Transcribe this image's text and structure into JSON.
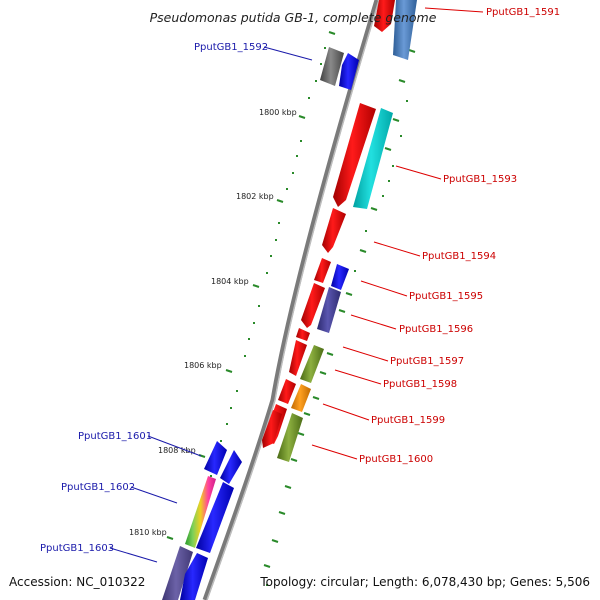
{
  "title": "Pseudomonas putida GB-1, complete genome",
  "accession": "Accession: NC_010322",
  "topology": "Topology: circular; Length: 6,078,430 bp; Genes: 5,506",
  "kbp_labels": [
    "1800 kbp",
    "1802 kbp",
    "1804 kbp",
    "1806 kbp",
    "1808 kbp",
    "1810 kbp"
  ],
  "forward_genes": [
    "PputGB1_1591",
    "PputGB1_1593",
    "PputGB1_1594",
    "PputGB1_1595",
    "PputGB1_1596",
    "PputGB1_1597",
    "PputGB1_1598",
    "PputGB1_1599",
    "PputGB1_1600"
  ],
  "reverse_genes": [
    "PputGB1_1592",
    "PputGB1_1601",
    "PputGB1_1602",
    "PputGB1_1603"
  ],
  "colors": {
    "forward_label": "#cc0000",
    "reverse_label": "#1a1aaa",
    "tick": "#2a8a2a",
    "backbone": "#888888"
  }
}
